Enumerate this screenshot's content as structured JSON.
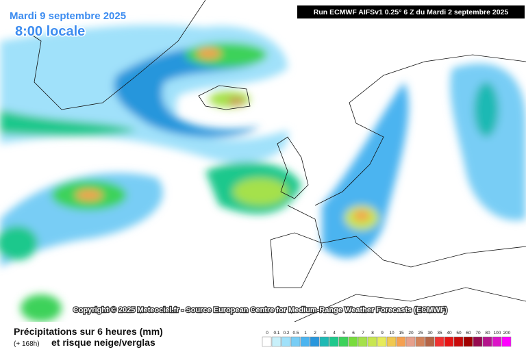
{
  "header": {
    "date": "Mardi 9 septembre 2025",
    "time": "8:00 locale",
    "run": "Run ECMWF AIFSv1 0.25° 6 Z du Mardi 2 septembre 2025"
  },
  "copyright": "Copyright © 2025 Meteociel.fr - Source European Centre for Medium-Range Weather Forecasts (ECMWF)",
  "legend": {
    "title": "Précipitations sur 6 heures (mm)",
    "lead": "(+ 168h)",
    "subtitle": "et risque neige/verglas",
    "levels": [
      0,
      0.1,
      0.2,
      0.5,
      1,
      2,
      3,
      4,
      5,
      6,
      7,
      8,
      9,
      10,
      15,
      20,
      25,
      30,
      35,
      40,
      50,
      60,
      70,
      80,
      100,
      200
    ],
    "colors": [
      "#ffffff",
      "#c8f0fa",
      "#a0e1fa",
      "#78cdf5",
      "#4bb4f0",
      "#2896dc",
      "#1eb9b4",
      "#1ec88c",
      "#3cd25a",
      "#78dc3c",
      "#a5e14b",
      "#c8e650",
      "#e6eb5a",
      "#f0c850",
      "#f5a050",
      "#e6a08c",
      "#d2825a",
      "#b46446",
      "#f03232",
      "#e61414",
      "#c80a0a",
      "#a00000",
      "#960a50",
      "#b4148c",
      "#dc14c8",
      "#ff00ff"
    ]
  }
}
